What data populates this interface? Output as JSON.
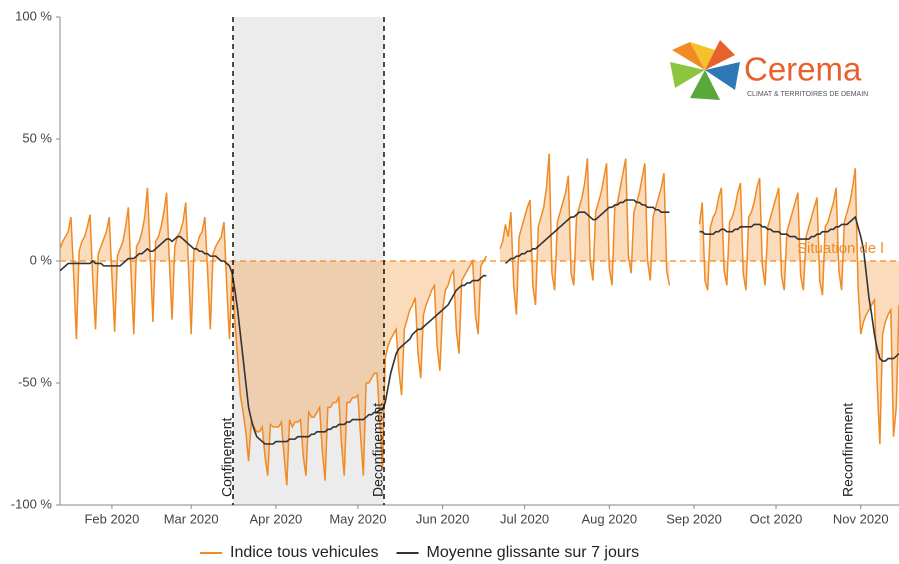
{
  "chart_data": {
    "type": "line",
    "categories": [
      null,
      null,
      null,
      null,
      null,
      null,
      null,
      null,
      null,
      null,
      null,
      null,
      null,
      null,
      null,
      null,
      null,
      null,
      null,
      "Feb 2020",
      null,
      null,
      null,
      null,
      null,
      null,
      null,
      null,
      null,
      null,
      null,
      null,
      null,
      null,
      null,
      null,
      null,
      null,
      null,
      null,
      null,
      null,
      null,
      null,
      null,
      null,
      null,
      null,
      "Mar 2020",
      null,
      null,
      null,
      null,
      null,
      null,
      null,
      null,
      null,
      null,
      null,
      null,
      null,
      null,
      null,
      null,
      null,
      null,
      null,
      null,
      null,
      null,
      null,
      null,
      null,
      null,
      null,
      null,
      null,
      null,
      "Apr 2020",
      null,
      null,
      null,
      null,
      null,
      null,
      null,
      null,
      null,
      null,
      null,
      null,
      null,
      null,
      null,
      null,
      null,
      null,
      null,
      null,
      null,
      null,
      null,
      null,
      null,
      null,
      null,
      null,
      null,
      "May 2020",
      null,
      null,
      null,
      null,
      null,
      null,
      null,
      null,
      null,
      null,
      null,
      null,
      null,
      null,
      null,
      null,
      null,
      null,
      null,
      null,
      null,
      null,
      null,
      null,
      null,
      null,
      null,
      null,
      null,
      null,
      "Jun 2020",
      null,
      null,
      null,
      null,
      null,
      null,
      null,
      null,
      null,
      null,
      null,
      null,
      null,
      null,
      null,
      null,
      null,
      null,
      null,
      null,
      null,
      null,
      null,
      null,
      null,
      null,
      null,
      null,
      null,
      "Jul 2020",
      null,
      null,
      null,
      null,
      null,
      null,
      null,
      null,
      null,
      null,
      null,
      null,
      null,
      null,
      null,
      null,
      null,
      null,
      null,
      null,
      null,
      null,
      null,
      null,
      null,
      null,
      null,
      null,
      null,
      null,
      "Aug 2020",
      null,
      null,
      null,
      null,
      null,
      null,
      null,
      null,
      null,
      null,
      null,
      null,
      null,
      null,
      null,
      null,
      null,
      null,
      null,
      null,
      null,
      null,
      null,
      null,
      null,
      null,
      null,
      null,
      null,
      null,
      "Sep 2020",
      null,
      null,
      null,
      null,
      null,
      null,
      null,
      null,
      null,
      null,
      null,
      null,
      null,
      null,
      null,
      null,
      null,
      null,
      null,
      null,
      null,
      null,
      null,
      null,
      null,
      null,
      null,
      null,
      null,
      "Oct 2020",
      null,
      null,
      null,
      null,
      null,
      null,
      null,
      null,
      null,
      null,
      null,
      null,
      null,
      null,
      null,
      null,
      null,
      null,
      null,
      null,
      null,
      null,
      null,
      null,
      null,
      null,
      null,
      null,
      null,
      null,
      "Nov 2020",
      null,
      null,
      null,
      null,
      null,
      null,
      null,
      null,
      null,
      null,
      null,
      null,
      null,
      null
    ],
    "series": [
      {
        "name": "Indice tous vehicules",
        "color": "#f08a24",
        "values": [
          5,
          8,
          10,
          12,
          18,
          -5,
          -32,
          4,
          8,
          10,
          14,
          19,
          -8,
          -28,
          3,
          6,
          9,
          12,
          18,
          -6,
          -29,
          2,
          5,
          8,
          14,
          22,
          -5,
          -30,
          6,
          8,
          12,
          18,
          30,
          2,
          -25,
          8,
          10,
          14,
          20,
          28,
          0,
          -24,
          6,
          10,
          12,
          16,
          24,
          -2,
          -30,
          4,
          6,
          10,
          12,
          18,
          -4,
          -28,
          3,
          6,
          8,
          10,
          16,
          -10,
          -32,
          -5,
          -25,
          -40,
          -55,
          -62,
          -70,
          -82,
          -66,
          -68,
          -70,
          -70,
          -68,
          -80,
          -88,
          -67,
          -68,
          -68,
          -68,
          -66,
          -80,
          -92,
          -65,
          -68,
          -66,
          -66,
          -65,
          -80,
          -88,
          -62,
          -64,
          -64,
          -62,
          -60,
          -78,
          -90,
          -60,
          -60,
          -58,
          -58,
          -56,
          -75,
          -88,
          -58,
          -58,
          -56,
          -56,
          -55,
          -72,
          -88,
          -50,
          -50,
          -48,
          -46,
          -46,
          -65,
          -85,
          -40,
          -35,
          -32,
          -30,
          -28,
          -45,
          -55,
          -28,
          -24,
          -20,
          -18,
          -15,
          -38,
          -48,
          -22,
          -18,
          -15,
          -12,
          -10,
          -35,
          -45,
          -20,
          -12,
          -10,
          -6,
          -4,
          -28,
          -38,
          -8,
          -6,
          -4,
          -2,
          0,
          -22,
          -30,
          -2,
          0,
          2,
          null,
          null,
          null,
          null,
          5,
          8,
          15,
          10,
          20,
          -10,
          -22,
          10,
          14,
          18,
          22,
          25,
          -10,
          -18,
          14,
          18,
          22,
          30,
          44,
          -5,
          -12,
          16,
          20,
          24,
          28,
          35,
          -5,
          -10,
          18,
          22,
          26,
          32,
          42,
          0,
          -8,
          20,
          24,
          28,
          34,
          40,
          -3,
          -10,
          22,
          24,
          30,
          36,
          42,
          2,
          -5,
          20,
          24,
          28,
          34,
          40,
          0,
          -8,
          18,
          22,
          26,
          30,
          36,
          -4,
          -10,
          null,
          null,
          null,
          null,
          null,
          null,
          null,
          null,
          null,
          null,
          15,
          24,
          -8,
          -12,
          14,
          18,
          20,
          26,
          30,
          -4,
          -10,
          16,
          18,
          22,
          28,
          32,
          -5,
          -12,
          18,
          20,
          24,
          30,
          34,
          -2,
          -10,
          14,
          18,
          22,
          26,
          30,
          -6,
          -12,
          12,
          16,
          20,
          24,
          28,
          -6,
          -12,
          10,
          14,
          18,
          22,
          26,
          -8,
          -14,
          14,
          16,
          20,
          24,
          30,
          -4,
          -12,
          16,
          20,
          24,
          30,
          38,
          -10,
          -30,
          -25,
          -22,
          -20,
          -18,
          -16,
          -50,
          -75,
          -30,
          -25,
          -22,
          -20,
          -72,
          -60,
          -18
        ]
      },
      {
        "name": "Moyenne glissante sur 7 jours",
        "color": "#333333",
        "values": [
          -4,
          -3,
          -2,
          -1,
          -1,
          -1,
          -1,
          -1,
          -1,
          -1,
          -1,
          -1,
          0,
          -1,
          -1,
          -1,
          -2,
          -2,
          -2,
          -2,
          -2,
          -2,
          -2,
          -1,
          0,
          1,
          1,
          1,
          2,
          3,
          3,
          4,
          5,
          4,
          4,
          5,
          6,
          7,
          8,
          9,
          9,
          8,
          9,
          10,
          10,
          9,
          8,
          7,
          6,
          5,
          5,
          4,
          4,
          3,
          3,
          2,
          2,
          2,
          1,
          0,
          0,
          -1,
          -2,
          -5,
          -12,
          -20,
          -30,
          -40,
          -50,
          -60,
          -65,
          -69,
          -72,
          -73,
          -74,
          -75,
          -75,
          -75,
          -75,
          -74,
          -74,
          -74,
          -74,
          -74,
          -73,
          -73,
          -73,
          -72,
          -72,
          -72,
          -72,
          -72,
          -71,
          -71,
          -70,
          -70,
          -70,
          -70,
          -69,
          -69,
          -68,
          -68,
          -67,
          -67,
          -67,
          -66,
          -66,
          -65,
          -65,
          -65,
          -65,
          -65,
          -64,
          -63,
          -63,
          -62,
          -62,
          -61,
          -61,
          -58,
          -52,
          -46,
          -42,
          -38,
          -36,
          -35,
          -34,
          -33,
          -32,
          -30,
          -29,
          -28,
          -28,
          -27,
          -26,
          -25,
          -24,
          -23,
          -22,
          -21,
          -20,
          -19,
          -18,
          -16,
          -14,
          -12,
          -11,
          -10,
          -10,
          -9,
          -9,
          -8,
          -8,
          -8,
          -7,
          -6,
          -6,
          null,
          null,
          null,
          null,
          null,
          null,
          -1,
          0,
          1,
          1,
          2,
          2,
          3,
          3,
          4,
          4,
          5,
          5,
          6,
          7,
          8,
          9,
          10,
          11,
          12,
          13,
          14,
          15,
          16,
          17,
          18,
          18,
          19,
          20,
          20,
          20,
          19,
          18,
          17,
          17,
          18,
          19,
          20,
          21,
          22,
          22,
          23,
          23,
          24,
          24,
          25,
          25,
          25,
          25,
          24,
          24,
          23,
          23,
          22,
          22,
          22,
          21,
          21,
          20,
          20,
          20,
          20,
          null,
          null,
          null,
          null,
          null,
          null,
          null,
          null,
          null,
          null,
          12,
          12,
          11,
          11,
          11,
          11,
          12,
          12,
          13,
          13,
          12,
          12,
          12,
          13,
          13,
          14,
          14,
          14,
          14,
          14,
          15,
          15,
          15,
          14,
          14,
          13,
          13,
          12,
          12,
          12,
          11,
          11,
          11,
          10,
          10,
          10,
          9,
          9,
          9,
          9,
          9,
          10,
          10,
          11,
          11,
          12,
          12,
          12,
          13,
          13,
          14,
          14,
          15,
          15,
          15,
          16,
          17,
          18,
          14,
          10,
          5,
          -5,
          -15,
          -22,
          -30,
          -36,
          -40,
          -41,
          -41,
          -40,
          -40,
          -40,
          -39,
          -38
        ]
      }
    ],
    "ylim": [
      -100,
      100
    ],
    "yticks": [
      {
        "value": -100,
        "label": "-100 %"
      },
      {
        "value": -50,
        "label": "-50 %"
      },
      {
        "value": 0,
        "label": "0 %"
      },
      {
        "value": 50,
        "label": "50 %"
      },
      {
        "value": 100,
        "label": "100 %"
      }
    ],
    "annotations": [
      "Confinement",
      "Deconfinement",
      "Reconfinement",
      "Situation de l"
    ]
  },
  "logo": {
    "name": "Cerema",
    "tagline": "CLIMAT & TERRITOIRES DE DEMAIN"
  }
}
